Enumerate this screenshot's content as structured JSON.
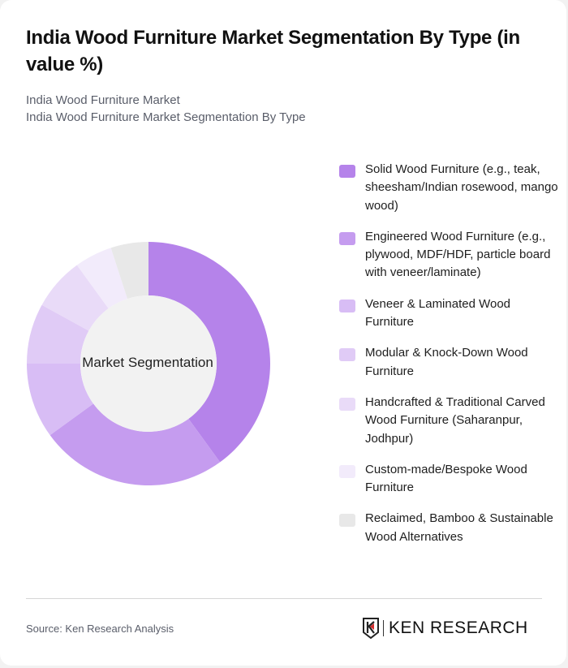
{
  "header": {
    "title": "India Wood Furniture Market Segmentation By Type (in value %)",
    "subtitle_line1": "India Wood Furniture Market",
    "subtitle_line2": "India Wood Furniture Market Segmentation By Type"
  },
  "chart_data": {
    "type": "pie",
    "subtype": "donut",
    "title": "India Wood Furniture Market Segmentation By Type (in value %)",
    "center_label": "Market Segmentation",
    "categories": [
      "Solid Wood Furniture (e.g., teak, sheesham/Indian rosewood, mango wood)",
      "Engineered Wood Furniture (e.g., plywood, MDF/HDF, particle board with veneer/laminate)",
      "Veneer & Laminated Wood Furniture",
      "Modular & Knock-Down Wood Furniture",
      "Handcrafted & Traditional Carved Wood Furniture (Saharanpur, Jodhpur)",
      "Custom-made/Bespoke Wood Furniture",
      "Reclaimed, Bamboo & Sustainable Wood Alternatives"
    ],
    "values": [
      40,
      25,
      10,
      8,
      7,
      5,
      5
    ],
    "colors": [
      "#b583ea",
      "#c59cef",
      "#d8bdf5",
      "#e0cbf6",
      "#e9dbf8",
      "#f2ebfb",
      "#e8e8e8"
    ],
    "legend_position": "right",
    "start_angle": "12 o'clock, clockwise"
  },
  "legend": {
    "items": [
      {
        "label": "Solid Wood Furniture (e.g., teak, sheesham/Indian rosewood, mango wood)",
        "color": "#b583ea"
      },
      {
        "label": "Engineered Wood Furniture (e.g., plywood, MDF/HDF, particle board with veneer/laminate)",
        "color": "#c59cef"
      },
      {
        "label": "Veneer & Laminated Wood Furniture",
        "color": "#d8bdf5"
      },
      {
        "label": "Modular & Knock-Down Wood Furniture",
        "color": "#e0cbf6"
      },
      {
        "label": "Handcrafted & Traditional Carved Wood Furniture (Saharanpur, Jodhpur)",
        "color": "#e9dbf8"
      },
      {
        "label": "Custom-made/Bespoke Wood Furniture",
        "color": "#f2ebfb"
      },
      {
        "label": "Reclaimed, Bamboo & Sustainable Wood Alternatives",
        "color": "#e8e8e8"
      }
    ]
  },
  "footer": {
    "source": "Source: Ken Research Analysis",
    "logo_text": "KEN RESEARCH",
    "logo_icon": "ken-research-shield-icon"
  }
}
